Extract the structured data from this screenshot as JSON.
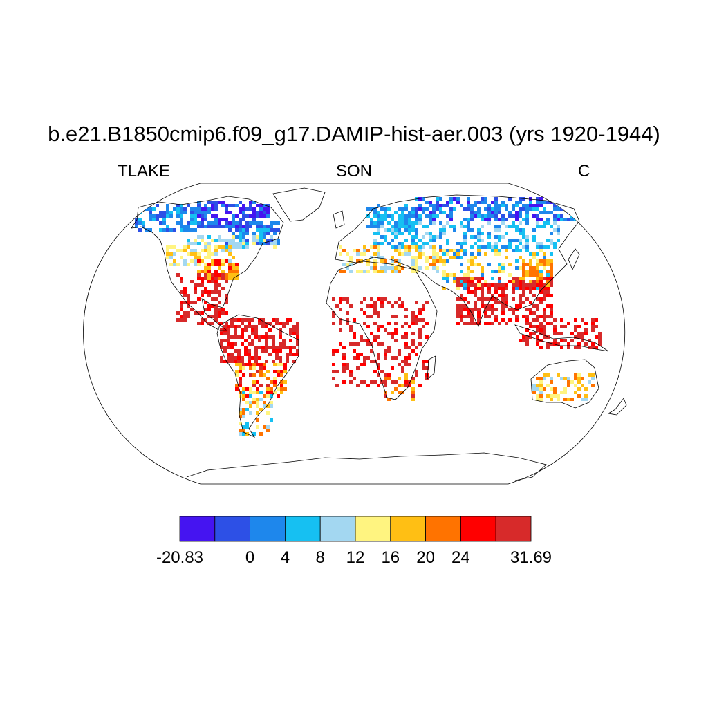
{
  "title": "b.e21.B1850cmip6.f09_g17.DAMIP-hist-aer.003 (yrs 1920-1944)",
  "variable": "TLAKE",
  "season": "SON",
  "units": "C",
  "colorbar": {
    "colors": [
      "#4514f1",
      "#2d50e6",
      "#1e87ec",
      "#16c0f2",
      "#a3d7f1",
      "#fff480",
      "#ffbf14",
      "#ff7300",
      "#ff0000",
      "#d72a2a"
    ],
    "labels": [
      {
        "text": "-20.83",
        "boundary": 0
      },
      {
        "text": "0",
        "boundary": 2
      },
      {
        "text": "4",
        "boundary": 3
      },
      {
        "text": "8",
        "boundary": 4
      },
      {
        "text": "12",
        "boundary": 5
      },
      {
        "text": "16",
        "boundary": 6
      },
      {
        "text": "20",
        "boundary": 7
      },
      {
        "text": "24",
        "boundary": 8
      },
      {
        "text": "31.69",
        "boundary": 10
      }
    ]
  }
}
